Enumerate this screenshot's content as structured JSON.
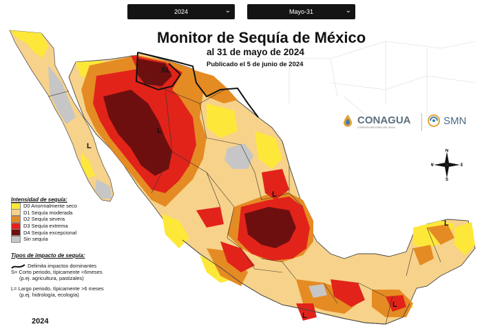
{
  "controls": {
    "year_select": "2024",
    "date_select": "Mayo-31"
  },
  "header": {
    "title": "Monitor de Sequía de México",
    "subtitle": "al 31 de mayo de 2024",
    "published": "Publicado el 5 de junio de 2024"
  },
  "logos": {
    "conagua": "CONAGUA",
    "conagua_sub": "COMISIÓN NACIONAL DEL AGUA",
    "smn": "SMN"
  },
  "legend": {
    "title": "Intensidad de sequía:",
    "items": [
      {
        "label": "D0 Anormalmente seco",
        "color": "#fde83a"
      },
      {
        "label": "D1 Sequía moderada",
        "color": "#f7d28a"
      },
      {
        "label": "D2 Sequía severa",
        "color": "#e58b23"
      },
      {
        "label": "D3 Sequía extrema",
        "color": "#e2231a"
      },
      {
        "label": "D4 Sequía excepcional",
        "color": "#6e0f0f"
      },
      {
        "label": "Sin sequía",
        "color": "#c6c6c6"
      }
    ]
  },
  "impacts": {
    "title": "Tipos de impacto de sequía:",
    "line1": "Delimita impactos dominantes",
    "line2": "S= Corto periodo, típicamente <6meses",
    "line3": "(p.ej. agricultura, pastizales)",
    "line4": "L= Largo periodo, típicamente >6 meses",
    "line5": "(p.ej. hidrología, ecología)"
  },
  "map_labels": {
    "sl": "SL",
    "l": "L"
  },
  "compass": {
    "n": "N",
    "s": "S",
    "e": "E",
    "w": "W"
  },
  "footer_year": "2024"
}
